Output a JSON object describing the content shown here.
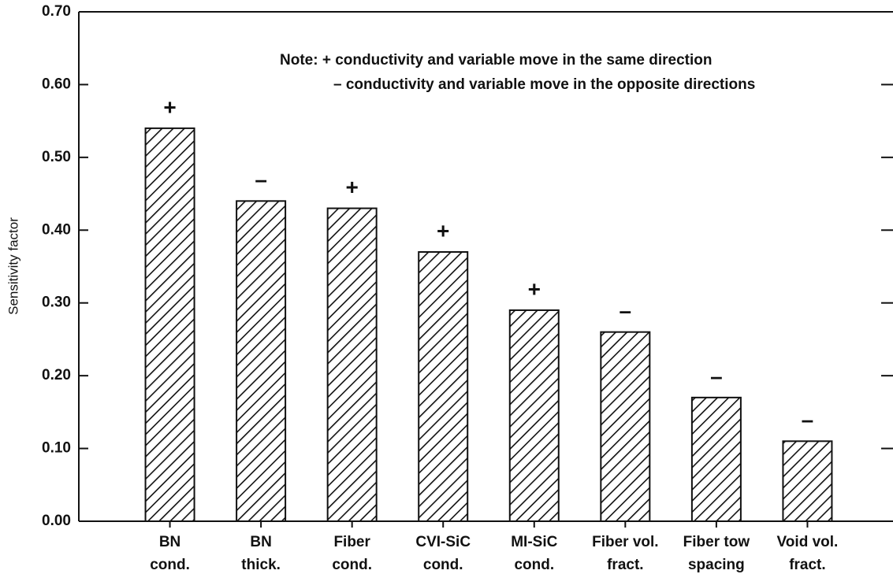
{
  "chart_data": {
    "type": "bar",
    "y_label": "Sensitivity factor",
    "note": [
      "Note: + conductivity and variable move in the same direction",
      "– conductivity and variable move in the opposite directions"
    ],
    "categories": [
      [
        "BN",
        "cond."
      ],
      [
        "BN",
        "thick."
      ],
      [
        "Fiber",
        "cond."
      ],
      [
        "CVI-SiC",
        "cond."
      ],
      [
        "MI-SiC",
        "cond."
      ],
      [
        "Fiber vol.",
        "fract."
      ],
      [
        "Fiber tow",
        "spacing"
      ],
      [
        "Void vol.",
        "fract."
      ]
    ],
    "values": [
      0.54,
      0.44,
      0.43,
      0.37,
      0.29,
      0.26,
      0.17,
      0.11
    ],
    "signs": [
      "+",
      "–",
      "+",
      "+",
      "+",
      "–",
      "–",
      "–"
    ],
    "color": "#111111",
    "hatch": true,
    "ylim": [
      0,
      0.7
    ],
    "yticks": [
      {
        "value": 0,
        "label": "0.00"
      },
      {
        "value": 0.1,
        "label": "0.10"
      },
      {
        "value": 0.2,
        "label": "0.20"
      },
      {
        "value": 0.3,
        "label": "0.30"
      },
      {
        "value": 0.4,
        "label": "0.40"
      },
      {
        "value": 0.5,
        "label": "0.50"
      },
      {
        "value": 0.6,
        "label": "0.60"
      },
      {
        "value": 0.7,
        "label": "0.70"
      }
    ]
  }
}
